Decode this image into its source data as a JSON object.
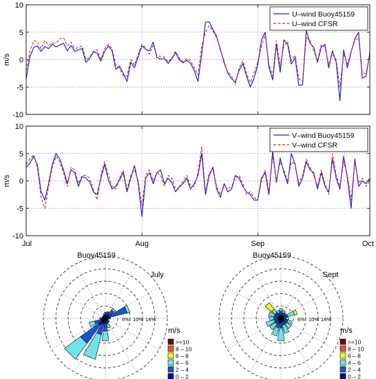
{
  "chart_data": [
    {
      "type": "line",
      "id": "u-wind",
      "ylabel": "m/s",
      "ylim": [
        -10,
        10
      ],
      "yticks": [
        -10,
        -5,
        0,
        5,
        10
      ],
      "xlim": [
        0,
        92
      ],
      "xticks": [
        0,
        31,
        62,
        92
      ],
      "xtick_labels": [
        "Jul",
        "Aug",
        "Sep",
        "Oct"
      ],
      "grid": true,
      "legend_position": "top-right",
      "series": [
        {
          "name": "U–wind Buoy45159",
          "color": "#1f1fd6",
          "style": "solid",
          "values": [
            -3.5,
            0.5,
            2.2,
            2.5,
            1.5,
            2.4,
            2.0,
            2.8,
            2.3,
            2.7,
            3.0,
            1.6,
            2.6,
            1.5,
            1.8,
            2.0,
            -0.5,
            0.2,
            1.4,
            1.2,
            -0.3,
            1.5,
            2.5,
            1.6,
            -1.8,
            -1.2,
            -2.5,
            -4.0,
            -0.5,
            -1.5,
            0.6,
            2.5,
            1.9,
            1.6,
            3.2,
            0.4,
            0.1,
            0.2,
            -0.7,
            0.1,
            1.3,
            0.0,
            -0.6,
            -0.1,
            -0.7,
            -2.0,
            -4.0,
            1.0,
            6.8,
            6.9,
            5.5,
            4.2,
            1.8,
            -0.4,
            -2.5,
            -3.5,
            -4.1,
            -2.0,
            -0.7,
            -3.0,
            -5.0,
            -3.4,
            -1.0,
            3.6,
            5.0,
            -1.4,
            -3.7,
            2.8,
            -2.3,
            3.6,
            2.8,
            -0.8,
            0.3,
            -4.7,
            -4.6,
            5.3,
            3.0,
            2.2,
            -0.5,
            2.3,
            2.8,
            -1.5,
            1.6,
            -0.5,
            -7.5,
            1.8,
            -1.5,
            1.4,
            3.8,
            5.0,
            -3.4,
            -3.0,
            1.3
          ]
        },
        {
          "name": "U–wind CFSR",
          "color": "#cc2a2a",
          "style": "dashed",
          "values": [
            -2.0,
            1.5,
            3.5,
            3.3,
            2.0,
            3.5,
            2.6,
            3.0,
            3.0,
            3.8,
            4.0,
            2.5,
            3.2,
            2.0,
            2.2,
            2.5,
            0.0,
            0.5,
            1.5,
            1.8,
            0.0,
            2.0,
            2.8,
            2.0,
            -1.0,
            -1.6,
            -3.0,
            -3.0,
            0.0,
            -1.0,
            1.0,
            2.8,
            2.2,
            1.0,
            2.5,
            0.8,
            0.5,
            0.5,
            -0.4,
            0.3,
            1.5,
            0.3,
            -0.4,
            0.2,
            -0.2,
            -1.5,
            -2.8,
            2.5,
            5.0,
            6.2,
            5.2,
            4.0,
            2.0,
            -0.8,
            -2.2,
            -3.0,
            -4.5,
            -1.5,
            -0.2,
            -2.5,
            -4.2,
            -2.5,
            -0.5,
            2.5,
            4.5,
            -0.8,
            -3.0,
            3.5,
            -1.2,
            2.5,
            3.3,
            -0.2,
            0.8,
            -3.5,
            -4.0,
            4.0,
            3.5,
            1.6,
            -0.2,
            2.8,
            2.2,
            -0.8,
            1.0,
            0.0,
            -5.0,
            1.0,
            -0.8,
            1.5,
            3.5,
            4.0,
            -2.5,
            -2.5,
            1.0
          ]
        }
      ]
    },
    {
      "type": "line",
      "id": "v-wind",
      "ylabel": "m/s",
      "ylim": [
        -10,
        10
      ],
      "yticks": [
        -10,
        -5,
        0,
        5,
        10
      ],
      "xlim": [
        0,
        92
      ],
      "xticks": [
        0,
        31,
        62,
        92
      ],
      "xtick_labels": [
        "Jul",
        "Aug",
        "Sep",
        "Oct"
      ],
      "grid": true,
      "legend_position": "top-right",
      "series": [
        {
          "name": "V–wind Buoy45159",
          "color": "#1f1fd6",
          "style": "solid",
          "values": [
            2.5,
            3.2,
            4.5,
            3.0,
            -2.0,
            -3.5,
            -0.5,
            3.0,
            5.0,
            4.0,
            2.0,
            -0.5,
            2.0,
            1.5,
            -1.0,
            0.8,
            0.5,
            -0.2,
            -2.0,
            -2.5,
            0.5,
            3.0,
            0.2,
            -1.5,
            -1.0,
            0.2,
            1.5,
            -2.0,
            0.5,
            2.8,
            -0.5,
            -6.5,
            0.5,
            1.5,
            -0.5,
            1.5,
            2.0,
            -0.5,
            0.5,
            -0.3,
            -2.0,
            -1.0,
            -0.5,
            0.5,
            -1.5,
            -0.5,
            1.0,
            5.0,
            -2.5,
            1.0,
            2.5,
            -1.5,
            -3.0,
            -0.5,
            -2.0,
            -1.5,
            1.0,
            0.5,
            -1.0,
            -2.0,
            -2.5,
            -3.5,
            -3.5,
            0.5,
            1.5,
            -2.5,
            5.5,
            -0.3,
            4.2,
            1.5,
            -0.5,
            5.0,
            3.0,
            -1.0,
            0.5,
            3.5,
            2.0,
            1.5,
            -1.5,
            1.5,
            -1.0,
            -2.0,
            4.0,
            0.5,
            -1.5,
            4.5,
            0.5,
            -5.0,
            4.0,
            -1.0,
            0.0,
            -0.5,
            0.5
          ]
        },
        {
          "name": "V–wind CFSR",
          "color": "#cc2a2a",
          "style": "dashed",
          "values": [
            3.0,
            4.0,
            4.8,
            2.5,
            -3.0,
            -5.0,
            -1.0,
            2.5,
            4.5,
            3.5,
            1.5,
            -1.0,
            2.5,
            2.0,
            -0.5,
            1.0,
            1.0,
            0.5,
            -1.5,
            -3.5,
            1.0,
            3.5,
            1.0,
            -1.0,
            -1.5,
            0.5,
            2.0,
            -1.5,
            1.0,
            2.0,
            0.0,
            -4.5,
            1.0,
            2.0,
            0.0,
            1.5,
            1.0,
            -1.0,
            1.0,
            0.5,
            -1.5,
            -1.5,
            0.0,
            1.0,
            -1.0,
            -1.0,
            1.5,
            6.2,
            -2.0,
            1.5,
            2.0,
            -1.0,
            -2.5,
            -1.0,
            -1.5,
            -1.0,
            0.5,
            1.0,
            -0.5,
            -2.5,
            -2.0,
            -3.0,
            -3.5,
            0.0,
            2.0,
            -2.0,
            4.5,
            0.0,
            3.5,
            2.0,
            0.0,
            3.5,
            3.0,
            -0.5,
            1.0,
            4.0,
            2.5,
            1.0,
            -1.0,
            2.0,
            -0.5,
            -2.5,
            5.0,
            1.0,
            -1.0,
            3.5,
            1.0,
            -3.5,
            3.5,
            -0.5,
            0.5,
            -1.0,
            0.0
          ]
        }
      ]
    },
    {
      "type": "wind-rose",
      "id": "rose-july",
      "title": "Buoy45159",
      "period": "July",
      "ring_labels": [
        "6%",
        "10%",
        "14%"
      ],
      "rmax": 22,
      "sectors_deg": 22.5,
      "legend_title": "m/s",
      "bins": [
        {
          "label": ">=10",
          "color": "#7a0000"
        },
        {
          "label": "8 – 10",
          "color": "#e8542a"
        },
        {
          "label": "6 – 8",
          "color": "#f2f21e"
        },
        {
          "label": "4 – 6",
          "color": "#6fe4e8"
        },
        {
          "label": "2 – 4",
          "color": "#1e52d8"
        },
        {
          "label": "0 – 2",
          "color": "#0a1478"
        }
      ],
      "petals": [
        {
          "dir": 0,
          "freq": [
            0,
            0,
            0,
            0,
            1.2,
            1.0
          ]
        },
        {
          "dir": 22.5,
          "freq": [
            0,
            0,
            0,
            0,
            1.5,
            1.0
          ]
        },
        {
          "dir": 45,
          "freq": [
            0,
            0,
            0,
            0.8,
            2.5,
            1.2
          ]
        },
        {
          "dir": 67.5,
          "freq": [
            0,
            0,
            0,
            1.0,
            6.5,
            1.5
          ]
        },
        {
          "dir": 90,
          "freq": [
            0,
            0,
            0,
            0,
            1.0,
            0.8
          ]
        },
        {
          "dir": 112.5,
          "freq": [
            0,
            0,
            0,
            0,
            0.6,
            0.6
          ]
        },
        {
          "dir": 135,
          "freq": [
            0,
            0,
            0,
            0,
            1.0,
            0.8
          ]
        },
        {
          "dir": 157.5,
          "freq": [
            0,
            0,
            0,
            1.5,
            1.0,
            1.0
          ]
        },
        {
          "dir": 180,
          "freq": [
            0,
            0,
            0,
            3.5,
            3.0,
            1.5
          ]
        },
        {
          "dir": 202.5,
          "freq": [
            0,
            0,
            0,
            9.0,
            4.0,
            2.0
          ]
        },
        {
          "dir": 225,
          "freq": [
            0,
            0,
            0,
            7.0,
            8.0,
            3.0
          ]
        },
        {
          "dir": 247.5,
          "freq": [
            0,
            0,
            0,
            2.0,
            2.5,
            1.5
          ]
        },
        {
          "dir": 270,
          "freq": [
            0,
            0,
            0,
            0,
            1.0,
            1.0
          ]
        },
        {
          "dir": 292.5,
          "freq": [
            0,
            0,
            0,
            0,
            0.6,
            0.6
          ]
        },
        {
          "dir": 315,
          "freq": [
            0,
            0,
            0,
            0,
            0.6,
            0.6
          ]
        },
        {
          "dir": 337.5,
          "freq": [
            0,
            0,
            0,
            0,
            0.8,
            0.8
          ]
        }
      ]
    },
    {
      "type": "wind-rose",
      "id": "rose-sept",
      "title": "Buoy45159",
      "period": "Sept",
      "ring_labels": [
        "6%",
        "10%",
        "14%"
      ],
      "rmax": 22,
      "sectors_deg": 22.5,
      "legend_title": "m/s",
      "bins": [
        {
          "label": ">=10",
          "color": "#7a0000"
        },
        {
          "label": "8 – 10",
          "color": "#e8542a"
        },
        {
          "label": "6 – 8",
          "color": "#f2f21e"
        },
        {
          "label": "4 – 6",
          "color": "#6fe4e8"
        },
        {
          "label": "2 – 4",
          "color": "#1e52d8"
        },
        {
          "label": "0 – 2",
          "color": "#0a1478"
        }
      ],
      "petals": [
        {
          "dir": 0,
          "freq": [
            0,
            0,
            0,
            1.0,
            1.5,
            1.0
          ]
        },
        {
          "dir": 22.5,
          "freq": [
            0,
            0,
            0,
            1.0,
            1.0,
            1.0
          ]
        },
        {
          "dir": 45,
          "freq": [
            0,
            0,
            0,
            0.5,
            1.0,
            1.0
          ]
        },
        {
          "dir": 67.5,
          "freq": [
            0,
            0,
            1.0,
            2.5,
            1.5,
            1.0
          ]
        },
        {
          "dir": 90,
          "freq": [
            0,
            0,
            0,
            1.0,
            1.0,
            0.8
          ]
        },
        {
          "dir": 112.5,
          "freq": [
            0,
            0,
            0,
            1.5,
            1.5,
            1.0
          ]
        },
        {
          "dir": 135,
          "freq": [
            0,
            0,
            0,
            2.0,
            1.5,
            1.0
          ]
        },
        {
          "dir": 157.5,
          "freq": [
            0,
            0,
            0,
            3.0,
            1.5,
            1.0
          ]
        },
        {
          "dir": 180,
          "freq": [
            0,
            0,
            0,
            4.5,
            2.0,
            1.5
          ]
        },
        {
          "dir": 202.5,
          "freq": [
            0,
            0,
            0,
            3.0,
            2.0,
            1.5
          ]
        },
        {
          "dir": 225,
          "freq": [
            0,
            0,
            0,
            2.5,
            1.5,
            1.0
          ]
        },
        {
          "dir": 247.5,
          "freq": [
            0,
            0,
            0,
            3.0,
            1.5,
            1.0
          ]
        },
        {
          "dir": 270,
          "freq": [
            0,
            0,
            0,
            1.5,
            1.5,
            1.0
          ]
        },
        {
          "dir": 292.5,
          "freq": [
            0,
            0,
            0,
            2.0,
            1.5,
            1.0
          ]
        },
        {
          "dir": 315,
          "freq": [
            0,
            0,
            3.0,
            1.5,
            1.5,
            1.0
          ]
        },
        {
          "dir": 337.5,
          "freq": [
            0,
            0,
            0,
            1.0,
            1.0,
            1.0
          ]
        }
      ]
    }
  ]
}
